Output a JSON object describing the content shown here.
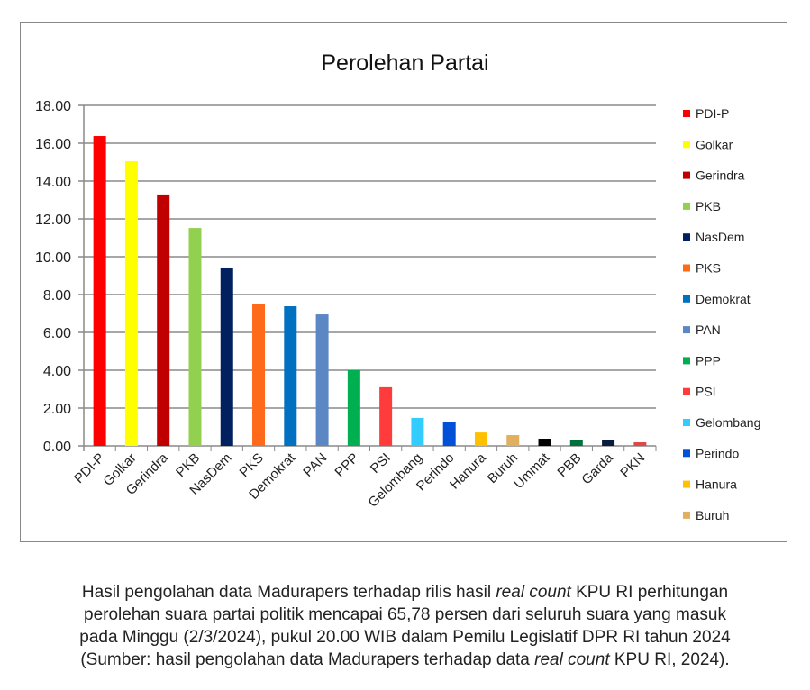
{
  "chart_data": {
    "type": "bar",
    "title": "Perolehan Partai",
    "xlabel": "",
    "ylabel": "",
    "ylim": [
      0,
      18
    ],
    "yticks": [
      "0.00",
      "2.00",
      "4.00",
      "6.00",
      "8.00",
      "10.00",
      "12.00",
      "14.00",
      "16.00",
      "18.00"
    ],
    "grid": true,
    "legend": "right",
    "categories": [
      "PDI-P",
      "Golkar",
      "Gerindra",
      "PKB",
      "NasDem",
      "PKS",
      "Demokrat",
      "PAN",
      "PPP",
      "PSI",
      "Gelombang",
      "Perindo",
      "Hanura",
      "Buruh",
      "Ummat",
      "PBB",
      "Garda",
      "PKN"
    ],
    "values": [
      16.38,
      15.05,
      13.29,
      11.52,
      9.43,
      7.48,
      7.38,
      6.95,
      4.0,
      3.1,
      1.48,
      1.24,
      0.71,
      0.57,
      0.38,
      0.33,
      0.29,
      0.19
    ],
    "colors": [
      "#ff0000",
      "#ffff00",
      "#c00000",
      "#92d050",
      "#002060",
      "#ff6a1a",
      "#0070c0",
      "#5b87c5",
      "#00b050",
      "#ff3b3b",
      "#33ccff",
      "#0050d8",
      "#ffc000",
      "#e0b060",
      "#000000",
      "#00703c",
      "#0a1a40",
      "#e04848"
    ],
    "legend_entries": [
      "PDI-P",
      "Golkar",
      "Gerindra",
      "PKB",
      "NasDem",
      "PKS",
      "Demokrat",
      "PAN",
      "PPP",
      "PSI",
      "Gelombang",
      "Perindo",
      "Hanura",
      "Buruh"
    ]
  },
  "caption": {
    "line1_a": "Hasil pengolahan data Madurapers terhadap rilis hasil ",
    "line1_em": "real count",
    "line1_b": " KPU RI perhitungan",
    "line2": "perolehan suara partai politik mencapai 65,78 persen dari seluruh suara yang masuk",
    "line3": "pada Minggu (2/3/2024), pukul 20.00 WIB dalam Pemilu Legislatif DPR RI tahun 2024",
    "line4_a": "(Sumber: hasil pengolahan data Madurapers terhadap data ",
    "line4_em": "real count",
    "line4_b": " KPU RI, 2024)."
  }
}
